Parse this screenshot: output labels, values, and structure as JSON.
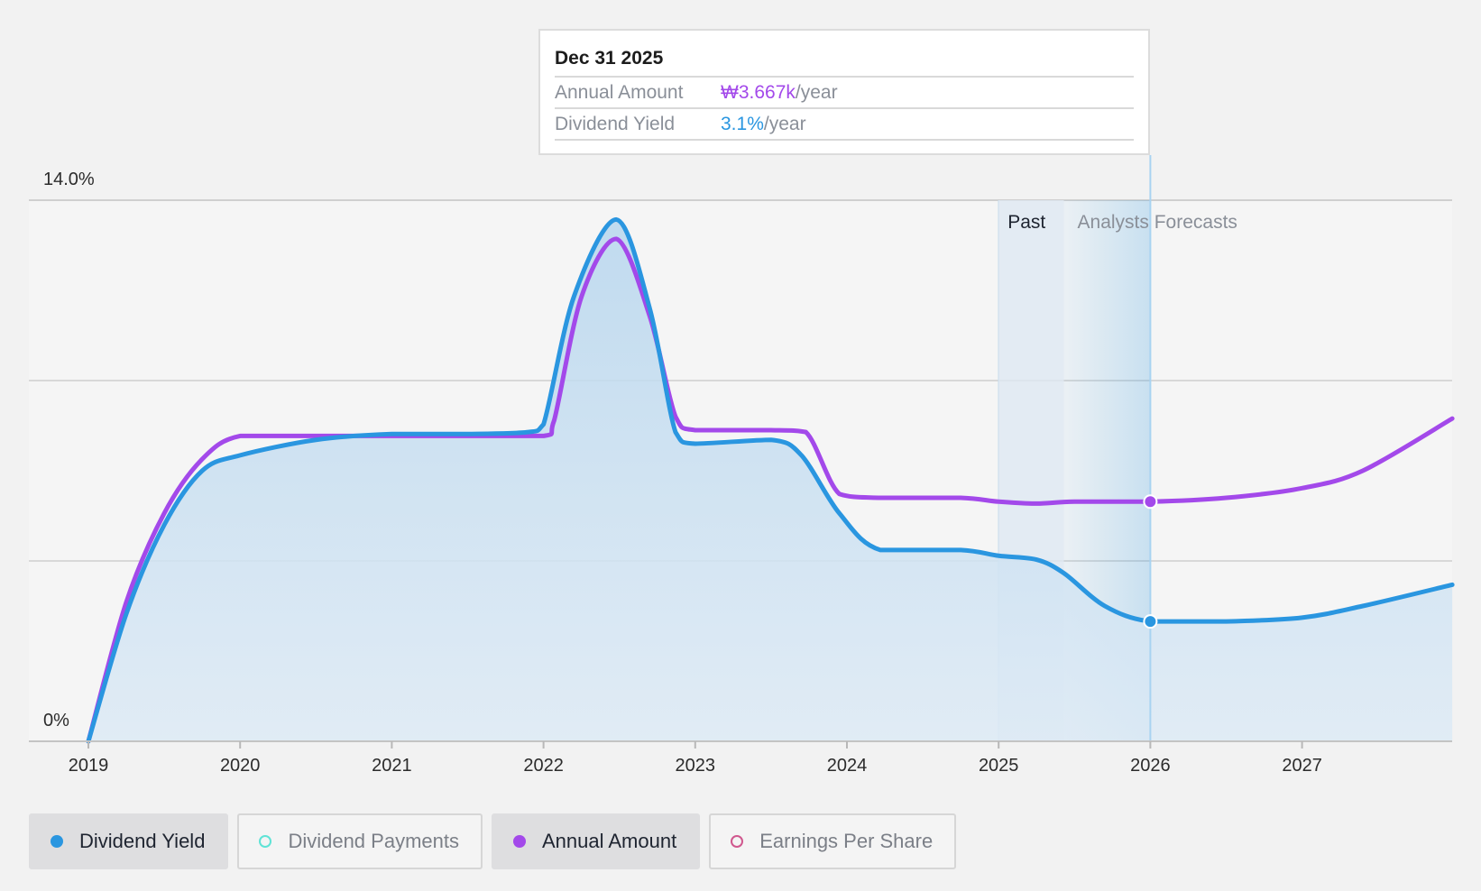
{
  "colors": {
    "yield": "#2a96e0",
    "annual": "#a349ea",
    "payments": "#5fe3d6",
    "eps": "#d0588e",
    "grid": "#d8d8d8"
  },
  "tooltip": {
    "date": "Dec 31 2025",
    "rows": [
      {
        "label": "Annual Amount",
        "value": "₩3.667k",
        "suffix": "/year"
      },
      {
        "label": "Dividend Yield",
        "value": "3.1%",
        "suffix": "/year"
      }
    ]
  },
  "regions": {
    "past": "Past",
    "forecast": "Analysts Forecasts"
  },
  "legend": [
    {
      "label": "Dividend Yield",
      "active": true,
      "icon": "filled-dot-icon"
    },
    {
      "label": "Dividend Payments",
      "active": false,
      "icon": "hollow-dot-icon"
    },
    {
      "label": "Annual Amount",
      "active": true,
      "icon": "filled-dot-icon"
    },
    {
      "label": "Earnings Per Share",
      "active": false,
      "icon": "hollow-dot-icon"
    }
  ],
  "chart_data": {
    "type": "area",
    "y_axis": {
      "labels": [
        "14.0%",
        "0%"
      ],
      "ylim": [
        0,
        14.0
      ],
      "unit": "%"
    },
    "x_axis": {
      "ticks": [
        "2019",
        "2020",
        "2021",
        "2022",
        "2023",
        "2024",
        "2025",
        "2026",
        "2027"
      ],
      "xlim": [
        2019.0,
        2027.99
      ]
    },
    "grid": true,
    "past_start": 2025.0,
    "forecast_start": 2025.43,
    "forecast_end": 2026.0,
    "series": [
      {
        "name": "Dividend Yield",
        "fill": true,
        "points": [
          [
            2019.0,
            0.0
          ],
          [
            2019.25,
            3.3
          ],
          [
            2019.5,
            5.6
          ],
          [
            2019.75,
            7.0
          ],
          [
            2020.0,
            7.4
          ],
          [
            2020.5,
            7.8
          ],
          [
            2021.0,
            7.95
          ],
          [
            2021.5,
            7.95
          ],
          [
            2021.9,
            8.0
          ],
          [
            2022.0,
            8.2
          ],
          [
            2022.2,
            11.5
          ],
          [
            2022.48,
            13.5
          ],
          [
            2022.7,
            11.2
          ],
          [
            2022.87,
            8.0
          ],
          [
            2023.0,
            7.7
          ],
          [
            2023.5,
            7.8
          ],
          [
            2023.7,
            7.4
          ],
          [
            2023.95,
            5.9
          ],
          [
            2024.22,
            4.95
          ],
          [
            2024.75,
            4.95
          ],
          [
            2025.0,
            4.8
          ],
          [
            2025.25,
            4.7
          ],
          [
            2025.43,
            4.35
          ],
          [
            2025.7,
            3.5
          ],
          [
            2026.0,
            3.1
          ],
          [
            2026.5,
            3.1
          ],
          [
            2027.0,
            3.2
          ],
          [
            2027.4,
            3.5
          ],
          [
            2027.99,
            4.05
          ]
        ]
      },
      {
        "name": "Annual Amount",
        "fill": false,
        "points": [
          [
            2019.0,
            0.0
          ],
          [
            2019.25,
            3.6
          ],
          [
            2019.5,
            5.9
          ],
          [
            2019.75,
            7.3
          ],
          [
            2020.0,
            7.9
          ],
          [
            2020.5,
            7.9
          ],
          [
            2021.0,
            7.9
          ],
          [
            2021.5,
            7.9
          ],
          [
            2022.0,
            7.9
          ],
          [
            2022.07,
            8.3
          ],
          [
            2022.25,
            11.5
          ],
          [
            2022.48,
            13.0
          ],
          [
            2022.7,
            11.0
          ],
          [
            2022.87,
            8.4
          ],
          [
            2023.0,
            8.05
          ],
          [
            2023.5,
            8.05
          ],
          [
            2023.73,
            8.0
          ],
          [
            2023.95,
            6.4
          ],
          [
            2024.22,
            6.3
          ],
          [
            2024.75,
            6.3
          ],
          [
            2025.0,
            6.2
          ],
          [
            2025.25,
            6.15
          ],
          [
            2025.5,
            6.2
          ],
          [
            2026.0,
            6.2
          ],
          [
            2026.5,
            6.3
          ],
          [
            2027.0,
            6.55
          ],
          [
            2027.4,
            7.0
          ],
          [
            2027.99,
            8.35
          ]
        ]
      }
    ],
    "markers": [
      {
        "series": "Annual Amount",
        "x": 2026.0,
        "y": 6.2
      },
      {
        "series": "Dividend Yield",
        "x": 2026.0,
        "y": 3.1
      }
    ]
  }
}
